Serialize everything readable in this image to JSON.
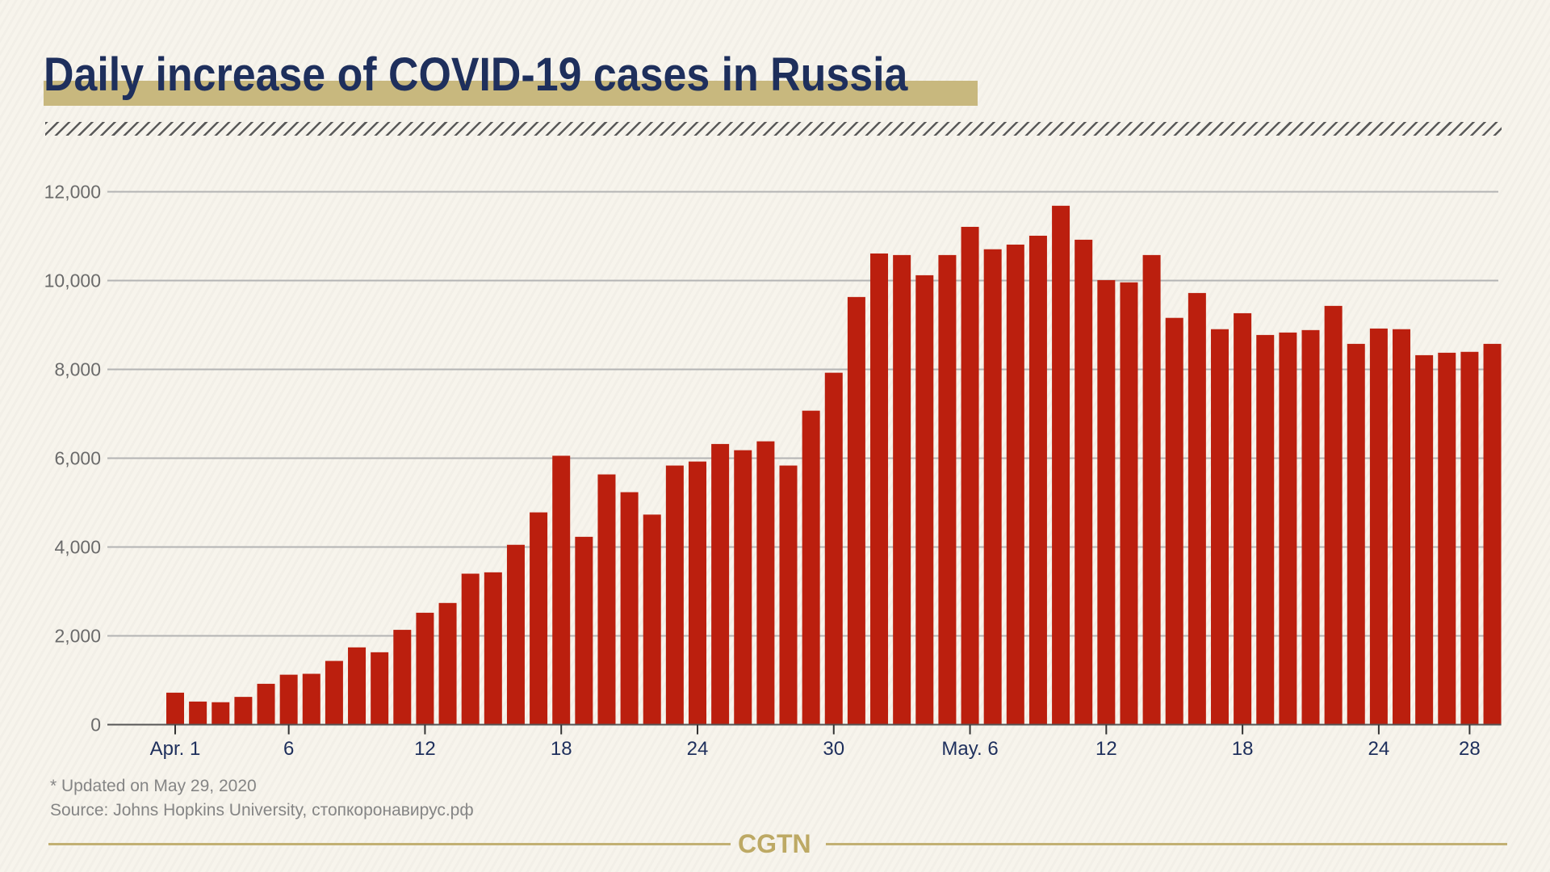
{
  "header": {
    "title": "Daily increase of COVID-19 cases in Russia"
  },
  "colors": {
    "bar": "#bb1f0e",
    "title": "#1e2f5c",
    "accent_gold": "#c8b87e",
    "gridline": "#b3b3b3",
    "background": "#f7f4ec"
  },
  "chart_data": {
    "type": "bar",
    "title": "Daily increase of COVID-19 cases in Russia",
    "xlabel": "",
    "ylabel": "",
    "ylim": [
      0,
      12000
    ],
    "grid": true,
    "y_ticks": [
      0,
      2000,
      4000,
      6000,
      8000,
      10000,
      12000
    ],
    "y_tick_labels": [
      "0",
      "2,000",
      "4,000",
      "6,000",
      "8,000",
      "10,000",
      "12,000"
    ],
    "x_tick_labels": [
      {
        "index": 0,
        "label": "Apr. 1"
      },
      {
        "index": 5,
        "label": "6"
      },
      {
        "index": 11,
        "label": "12"
      },
      {
        "index": 17,
        "label": "18"
      },
      {
        "index": 23,
        "label": "24"
      },
      {
        "index": 29,
        "label": "30"
      },
      {
        "index": 35,
        "label": "May. 6"
      },
      {
        "index": 41,
        "label": "12"
      },
      {
        "index": 47,
        "label": "18"
      },
      {
        "index": 53,
        "label": "24"
      },
      {
        "index": 57,
        "label": "28"
      }
    ],
    "categories": [
      "Apr 1",
      "Apr 2",
      "Apr 3",
      "Apr 4",
      "Apr 5",
      "Apr 6",
      "Apr 7",
      "Apr 8",
      "Apr 9",
      "Apr 10",
      "Apr 11",
      "Apr 12",
      "Apr 13",
      "Apr 14",
      "Apr 15",
      "Apr 16",
      "Apr 17",
      "Apr 18",
      "Apr 19",
      "Apr 20",
      "Apr 21",
      "Apr 22",
      "Apr 23",
      "Apr 24",
      "Apr 25",
      "Apr 26",
      "Apr 27",
      "Apr 28",
      "Apr 29",
      "Apr 30",
      "May 1",
      "May 2",
      "May 3",
      "May 4",
      "May 5",
      "May 6",
      "May 7",
      "May 8",
      "May 9",
      "May 10",
      "May 11",
      "May 12",
      "May 13",
      "May 14",
      "May 15",
      "May 16",
      "May 17",
      "May 18",
      "May 19",
      "May 20",
      "May 21",
      "May 22",
      "May 23",
      "May 24",
      "May 25",
      "May 26",
      "May 27",
      "May 28",
      "May 29"
    ],
    "series": [
      {
        "name": "Daily new cases",
        "values": [
          720,
          520,
          505,
          625,
          920,
          1125,
          1145,
          1435,
          1740,
          1630,
          2135,
          2520,
          2740,
          3400,
          3430,
          4050,
          4780,
          6055,
          4230,
          5635,
          5235,
          4730,
          5835,
          5925,
          6320,
          6180,
          6380,
          5835,
          7070,
          7925,
          9630,
          10610,
          10575,
          10120,
          10575,
          11210,
          10705,
          10810,
          11010,
          11685,
          10920,
          10010,
          9960,
          10575,
          9160,
          9720,
          8905,
          9265,
          8775,
          8830,
          8885,
          9430,
          8575,
          8920,
          8905,
          8320,
          8375,
          8395,
          8575
        ]
      }
    ]
  },
  "footer": {
    "note": "* Updated on May 29, 2020",
    "source": "Source: Johns Hopkins University, стопкоронавирус.рф",
    "logo": "CGTN"
  }
}
